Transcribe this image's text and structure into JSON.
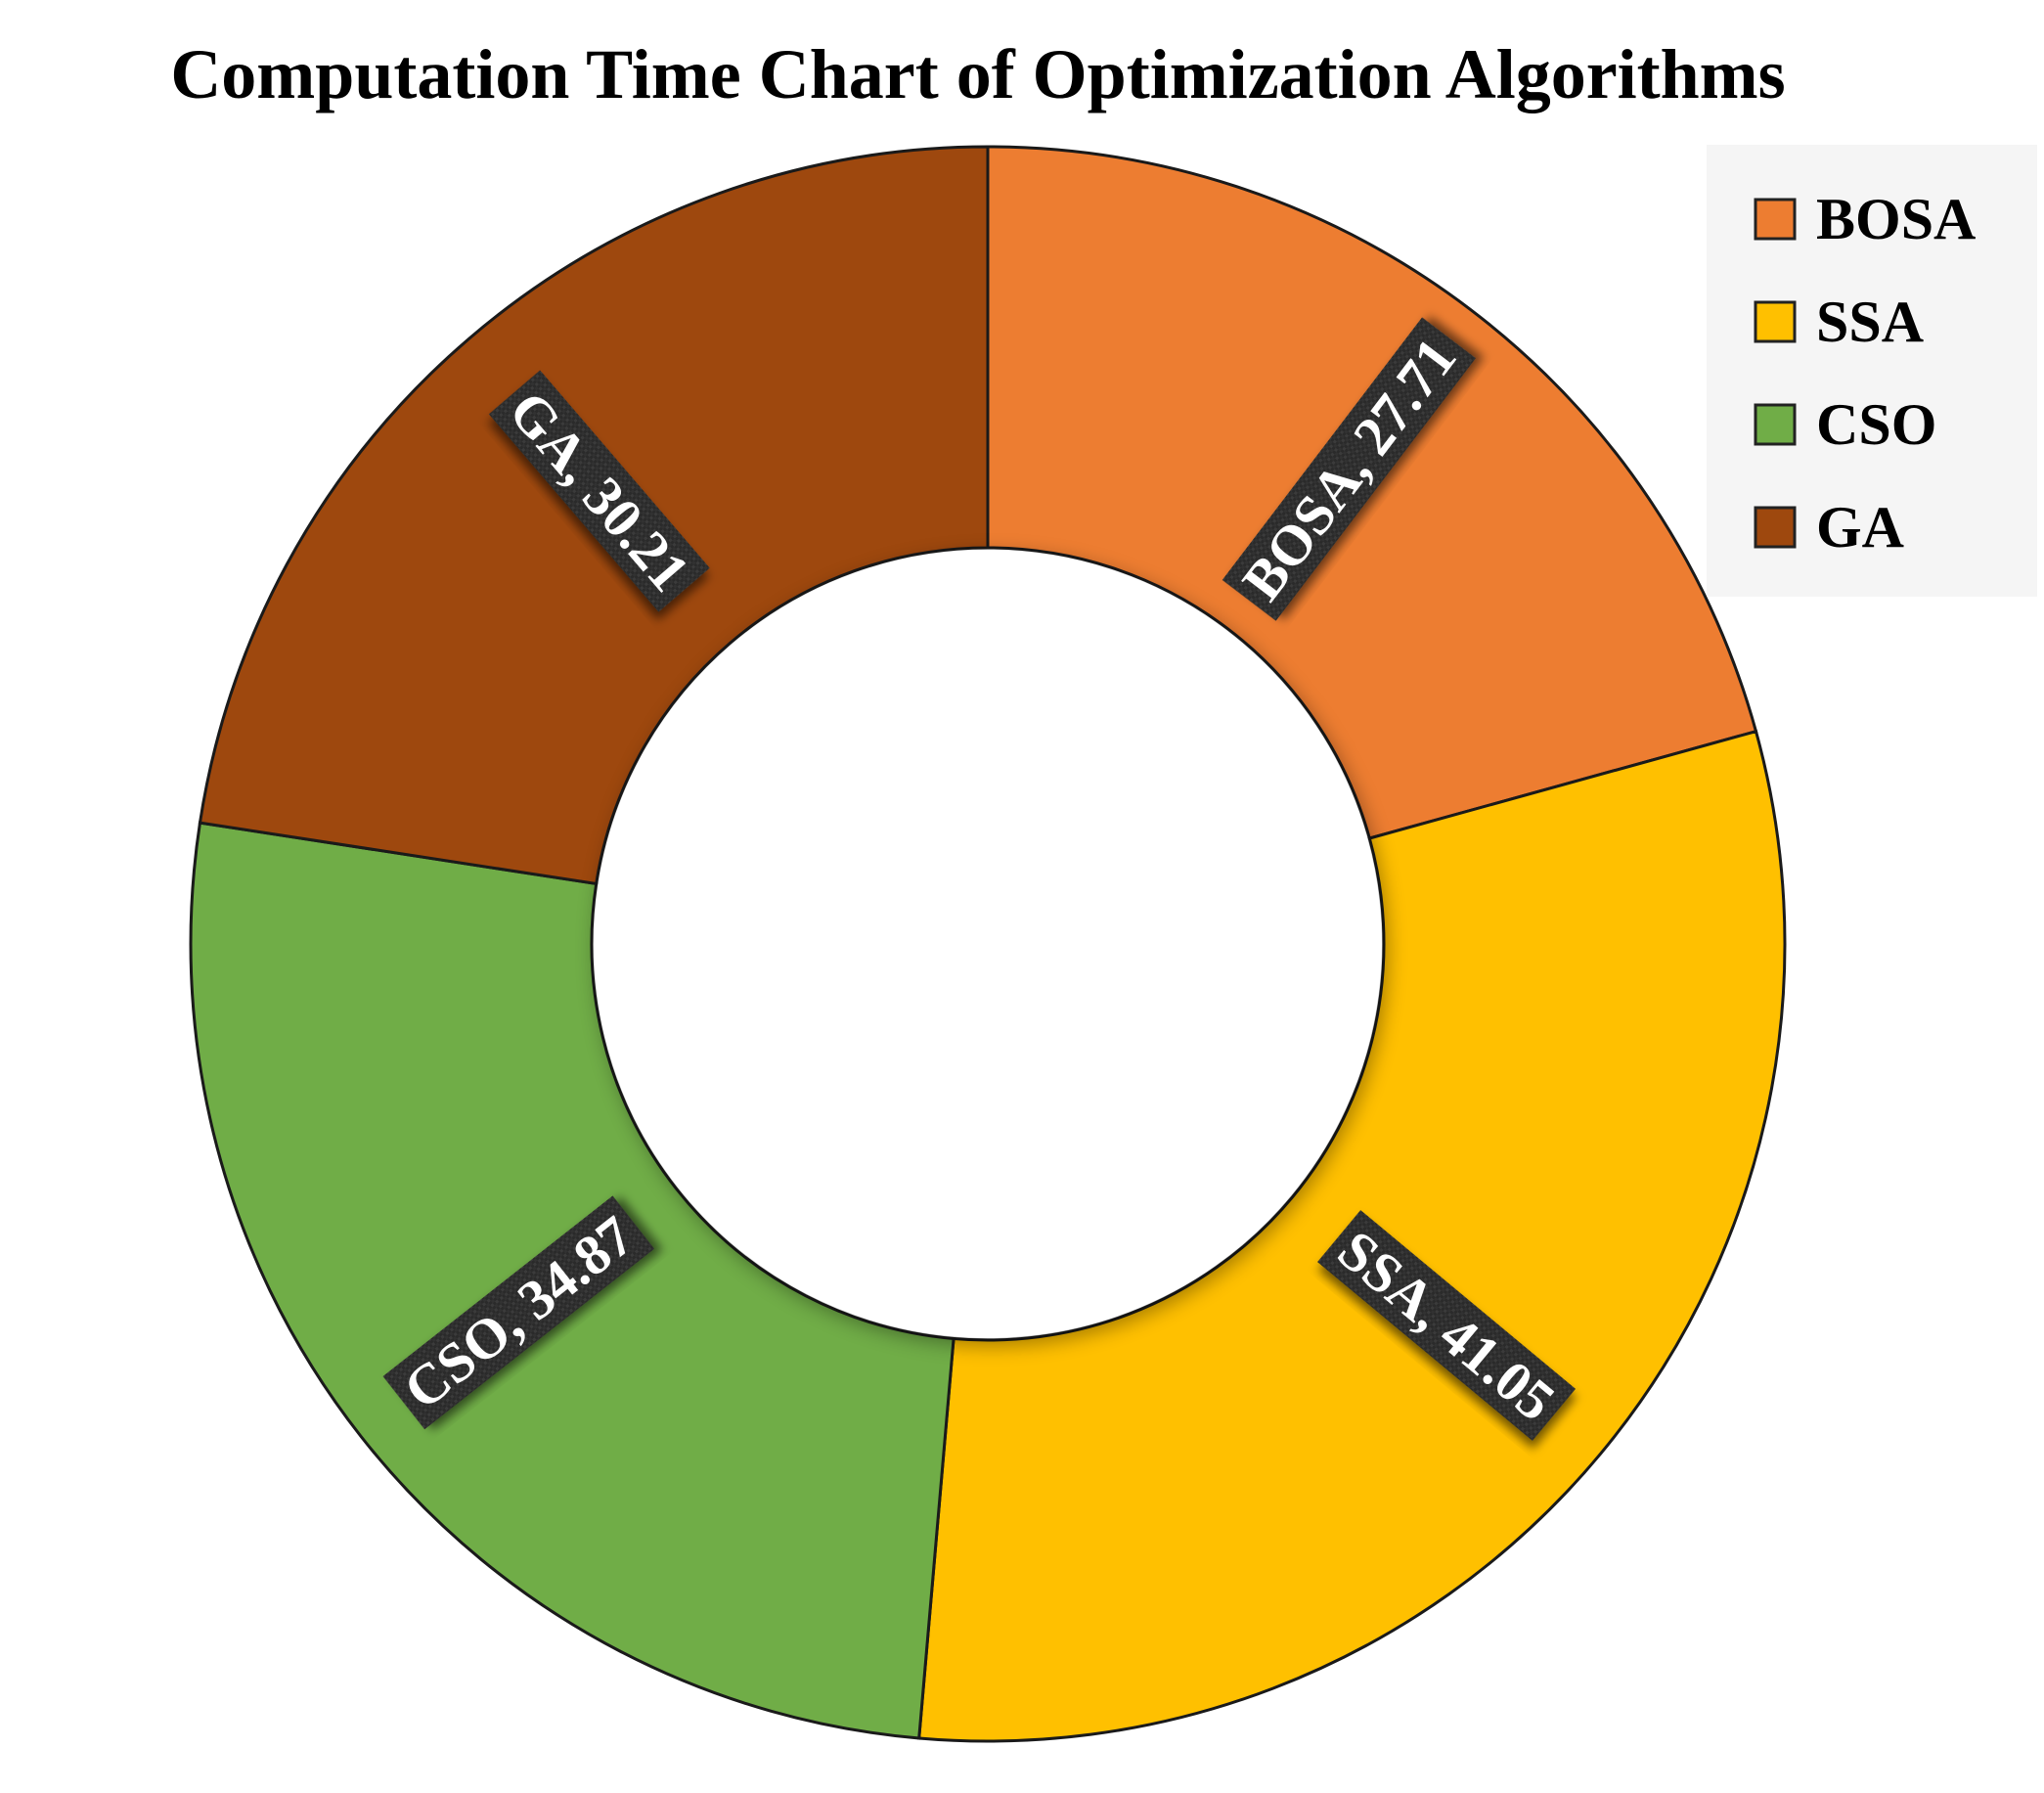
{
  "chart_data": {
    "type": "pie",
    "variant": "donut",
    "title": "Computation Time Chart of Optimization Algorithms",
    "categories": [
      "BOSA",
      "SSA",
      "CSO",
      "GA"
    ],
    "values": [
      27.71,
      41.05,
      34.87,
      30.21
    ],
    "colors": [
      "#ED7D31",
      "#FFC000",
      "#70AD47",
      "#9E480E"
    ],
    "data_labels": [
      "BOSA, 27.71",
      "SSA, 41.05",
      "CSO, 34.87",
      "GA, 30.21"
    ],
    "legend": {
      "position": "top-right",
      "entries": [
        "BOSA",
        "SSA",
        "CSO",
        "GA"
      ]
    },
    "start_angle_deg": 0,
    "direction": "clockwise"
  }
}
